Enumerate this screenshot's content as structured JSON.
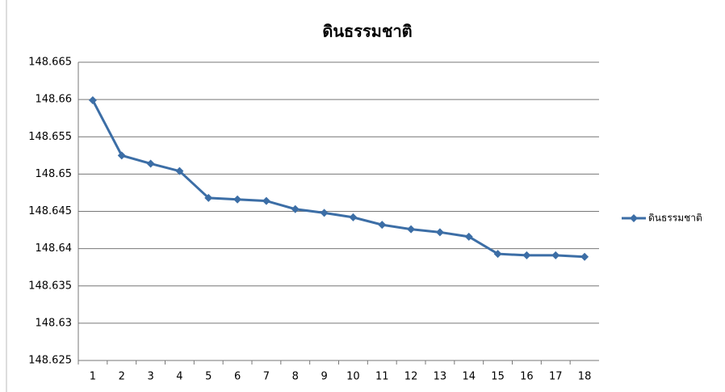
{
  "chart_data": {
    "type": "line",
    "title": "ดินธรรมชาติ",
    "categories": [
      1,
      2,
      3,
      4,
      5,
      6,
      7,
      8,
      9,
      10,
      11,
      12,
      13,
      14,
      15,
      16,
      17,
      18
    ],
    "series": [
      {
        "name": "ดินธรรมชาติ",
        "color": "#3c6ea6",
        "values": [
          148.6599,
          148.6525,
          148.6514,
          148.6504,
          148.6468,
          148.6466,
          148.6464,
          148.6453,
          148.6448,
          148.6442,
          148.6432,
          148.6426,
          148.6422,
          148.6416,
          148.6393,
          148.6391,
          148.6391,
          148.6389
        ]
      }
    ],
    "ylim": [
      148.625,
      148.665
    ],
    "yticks": [
      148.625,
      148.63,
      148.635,
      148.64,
      148.645,
      148.65,
      148.655,
      148.66,
      148.665
    ],
    "grid": true,
    "legend": "right"
  }
}
